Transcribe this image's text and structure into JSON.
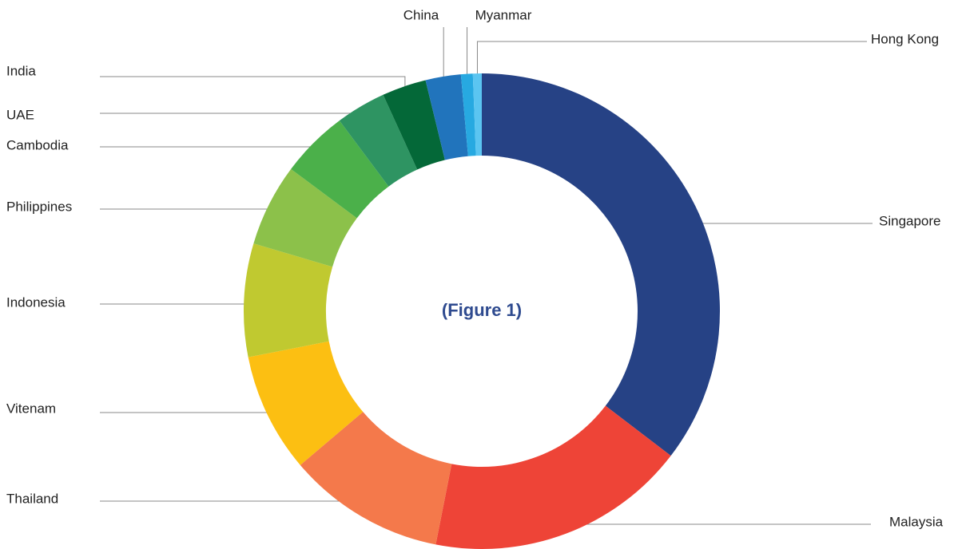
{
  "chart_data": {
    "type": "pie",
    "title": "(Figure 1)",
    "categories": [
      "Singapore",
      "Malaysia",
      "Thailand",
      "Vitenam",
      "Indonesia",
      "Philippines",
      "Cambodia",
      "UAE",
      "India",
      "China",
      "Myanmar",
      "Hong Kong"
    ],
    "values": [
      35.4,
      17.7,
      10.7,
      8.1,
      7.7,
      5.6,
      4.6,
      3.4,
      3.0,
      2.4,
      0.8,
      0.6
    ],
    "colors": [
      "#264285",
      "#ee4437",
      "#f4794b",
      "#fcbf12",
      "#c0c930",
      "#8cc14a",
      "#4bb04a",
      "#2e9462",
      "#046838",
      "#2174bc",
      "#27a9e1",
      "#5bc5f1"
    ]
  }
}
